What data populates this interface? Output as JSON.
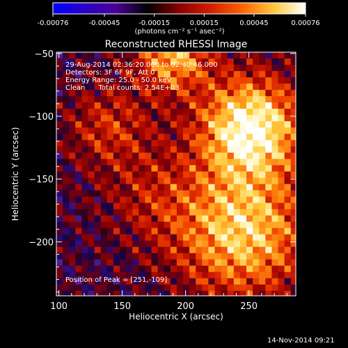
{
  "chart_data": {
    "type": "heatmap",
    "title": "Reconstructed RHESSI Image",
    "xlabel": "Heliocentric X (arcsec)",
    "ylabel": "Heliocentric Y (arcsec)",
    "xlim": [
      98,
      287
    ],
    "ylim": [
      -243,
      -49
    ],
    "x_ticks": [
      100,
      150,
      200,
      250
    ],
    "y_ticks": [
      -50,
      -100,
      -150,
      -200
    ],
    "colorbar": {
      "range": [
        -0.00076,
        0.00076
      ],
      "tick_values": [
        -0.00076,
        -0.00045,
        -0.00015,
        0.00015,
        0.00045,
        0.00076
      ],
      "tick_labels": [
        "-0.00076",
        "-0.00045",
        "-0.00015",
        "0.00015",
        "0.00045",
        "0.00076"
      ],
      "unit_label": "(photons cm⁻² s⁻¹ asec⁻²)",
      "colors": [
        "#0000ff",
        "#2a00c8",
        "#4b0096",
        "#000000",
        "#8b0000",
        "#d21e00",
        "#ff6400",
        "#ffc83c",
        "#ffffff"
      ]
    },
    "peak": {
      "x": 251,
      "y": -109
    },
    "sources": [
      {
        "x": 251,
        "y": -109,
        "sigma": 14,
        "amp": 1.0
      },
      {
        "x": 245,
        "y": -192,
        "sigma": 18,
        "amp": 0.8
      },
      {
        "x": 190,
        "y": -52,
        "sigma": 10,
        "amp": 0.7
      },
      {
        "x": 140,
        "y": -108,
        "sigma": 12,
        "amp": 0.35
      },
      {
        "x": 175,
        "y": -165,
        "sigma": 14,
        "amp": 0.25
      }
    ]
  },
  "annotations": {
    "time_range": "29-Aug-2014 02:36:20.000 to 02:40:46.000",
    "detectors": "Detectors: 3F 6F 9F, Att 0",
    "energy": "Energy Range: 25.0 - 50.0 keV",
    "method": "Clean      Total counts: 2.54E+03",
    "peak_text": "Position of Peak = [251,-109]"
  },
  "footer": {
    "timestamp": "14-Nov-2014 09:21"
  }
}
